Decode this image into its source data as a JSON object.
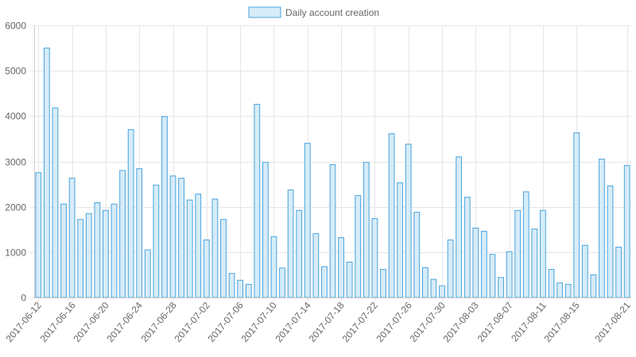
{
  "colors": {
    "bar_fill": "#d6ecf9",
    "bar_stroke": "#4aa3dc",
    "grid": "#e6e6e6",
    "axis": "#666666"
  },
  "chart_data": {
    "type": "bar",
    "title": "",
    "xlabel": "",
    "ylabel": "",
    "legend": {
      "position": "top-center"
    },
    "grid": true,
    "ylim": [
      0,
      6000
    ],
    "yticks": [
      0,
      1000,
      2000,
      3000,
      4000,
      5000,
      6000
    ],
    "categories": [
      "2017-06-12",
      "2017-06-13",
      "2017-06-14",
      "2017-06-15",
      "2017-06-16",
      "2017-06-17",
      "2017-06-18",
      "2017-06-19",
      "2017-06-20",
      "2017-06-21",
      "2017-06-22",
      "2017-06-23",
      "2017-06-24",
      "2017-06-25",
      "2017-06-26",
      "2017-06-27",
      "2017-06-28",
      "2017-06-29",
      "2017-06-30",
      "2017-07-01",
      "2017-07-02",
      "2017-07-03",
      "2017-07-04",
      "2017-07-05",
      "2017-07-06",
      "2017-07-07",
      "2017-07-08",
      "2017-07-09",
      "2017-07-10",
      "2017-07-11",
      "2017-07-12",
      "2017-07-13",
      "2017-07-14",
      "2017-07-15",
      "2017-07-16",
      "2017-07-17",
      "2017-07-18",
      "2017-07-19",
      "2017-07-20",
      "2017-07-21",
      "2017-07-22",
      "2017-07-23",
      "2017-07-24",
      "2017-07-25",
      "2017-07-26",
      "2017-07-27",
      "2017-07-28",
      "2017-07-29",
      "2017-07-30",
      "2017-07-31",
      "2017-08-01",
      "2017-08-02",
      "2017-08-03",
      "2017-08-04",
      "2017-08-05",
      "2017-08-06",
      "2017-08-07",
      "2017-08-08",
      "2017-08-09",
      "2017-08-10",
      "2017-08-11",
      "2017-08-12",
      "2017-08-13",
      "2017-08-14",
      "2017-08-15",
      "2017-08-16",
      "2017-08-17",
      "2017-08-18",
      "2017-08-19",
      "2017-08-20",
      "2017-08-21"
    ],
    "xtick_labels": [
      "2017-06-12",
      "2017-06-16",
      "2017-06-20",
      "2017-06-24",
      "2017-06-28",
      "2017-07-02",
      "2017-07-06",
      "2017-07-10",
      "2017-07-14",
      "2017-07-18",
      "2017-07-22",
      "2017-07-26",
      "2017-07-30",
      "2017-08-03",
      "2017-08-07",
      "2017-08-11",
      "2017-08-15",
      "2017-08-21"
    ],
    "series": [
      {
        "name": "Daily account creation",
        "values": [
          2750,
          5500,
          4180,
          2060,
          2630,
          1720,
          1850,
          2090,
          1920,
          2060,
          2800,
          3700,
          2840,
          1050,
          2480,
          3990,
          2680,
          2630,
          2150,
          2280,
          1270,
          2170,
          1720,
          530,
          380,
          290,
          4260,
          2980,
          1340,
          650,
          2370,
          1920,
          3400,
          1410,
          680,
          2930,
          1320,
          780,
          2250,
          2980,
          1740,
          620,
          3610,
          2530,
          3380,
          1880,
          660,
          400,
          260,
          1270,
          3100,
          2210,
          1530,
          1460,
          950,
          440,
          1010,
          1920,
          2330,
          1510,
          1920,
          620,
          320,
          290,
          3630,
          1150,
          500,
          3050,
          2460,
          1110,
          2910
        ]
      }
    ]
  }
}
